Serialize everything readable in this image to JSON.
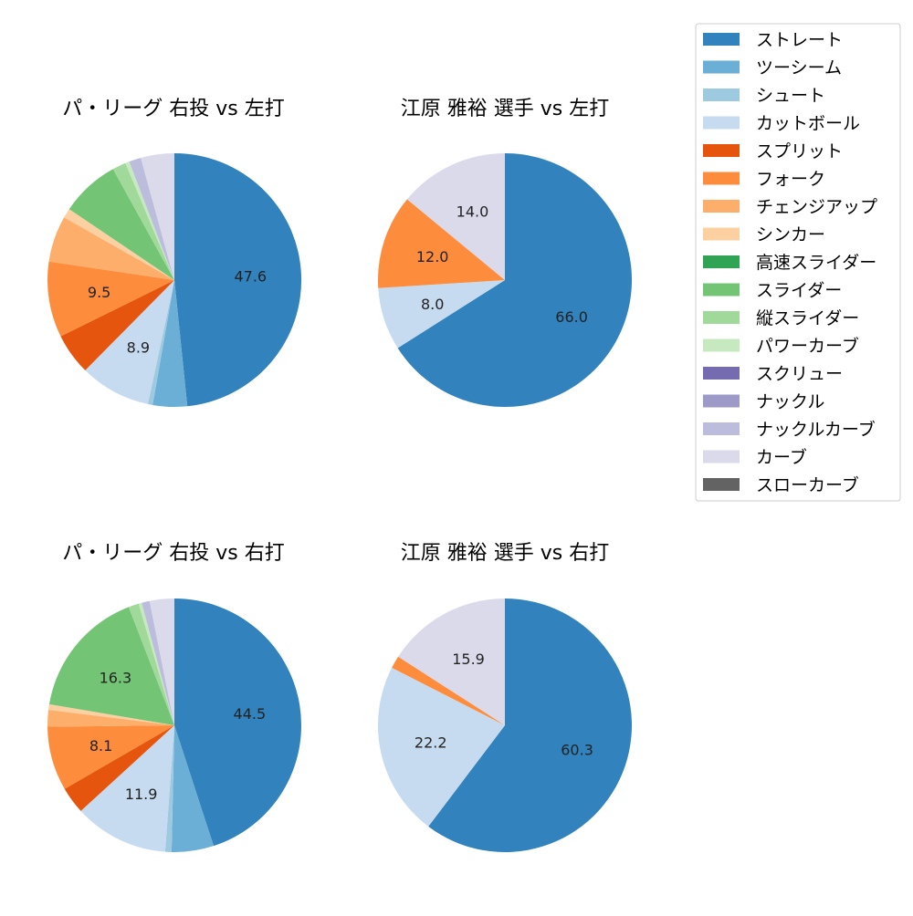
{
  "legend": {
    "placement": "right",
    "items": [
      {
        "label": "ストレート",
        "color": "#3182bd"
      },
      {
        "label": "ツーシーム",
        "color": "#6baed6"
      },
      {
        "label": "シュート",
        "color": "#9ecae1"
      },
      {
        "label": "カットボール",
        "color": "#c6dbef"
      },
      {
        "label": "スプリット",
        "color": "#e6550d"
      },
      {
        "label": "フォーク",
        "color": "#fd8d3c"
      },
      {
        "label": "チェンジアップ",
        "color": "#fdae6b"
      },
      {
        "label": "シンカー",
        "color": "#fdd0a2"
      },
      {
        "label": "高速スライダー",
        "color": "#31a354"
      },
      {
        "label": "スライダー",
        "color": "#74c476"
      },
      {
        "label": "縦スライダー",
        "color": "#a1d99b"
      },
      {
        "label": "パワーカーブ",
        "color": "#c7e9c0"
      },
      {
        "label": "スクリュー",
        "color": "#756bb1"
      },
      {
        "label": "ナックル",
        "color": "#9e9ac8"
      },
      {
        "label": "ナックルカーブ",
        "color": "#bcbddc"
      },
      {
        "label": "カーブ",
        "color": "#dadaeb"
      },
      {
        "label": "スローカーブ",
        "color": "#636363"
      }
    ]
  },
  "chart_data": [
    {
      "type": "pie",
      "title": "パ・リーグ 右投 vs 左打",
      "slices": [
        {
          "name": "ストレート",
          "value": 47.6,
          "label": "47.6"
        },
        {
          "name": "ツーシーム",
          "value": 4.3
        },
        {
          "name": "シュート",
          "value": 0.6
        },
        {
          "name": "カットボール",
          "value": 8.9,
          "label": "8.9"
        },
        {
          "name": "スプリット",
          "value": 5.2
        },
        {
          "name": "フォーク",
          "value": 9.5,
          "label": "9.5"
        },
        {
          "name": "チェンジアップ",
          "value": 5.8
        },
        {
          "name": "シンカー",
          "value": 1.2
        },
        {
          "name": "スライダー",
          "value": 7.4
        },
        {
          "name": "縦スライダー",
          "value": 1.7
        },
        {
          "name": "パワーカーブ",
          "value": 0.5
        },
        {
          "name": "ナックルカーブ",
          "value": 1.5
        },
        {
          "name": "カーブ",
          "value": 4.2
        }
      ]
    },
    {
      "type": "pie",
      "title": "江原 雅裕 選手 vs 左打",
      "slices": [
        {
          "name": "ストレート",
          "value": 66.0,
          "label": "66.0"
        },
        {
          "name": "カットボール",
          "value": 8.0,
          "label": "8.0"
        },
        {
          "name": "フォーク",
          "value": 12.0,
          "label": "12.0"
        },
        {
          "name": "カーブ",
          "value": 14.0,
          "label": "14.0"
        }
      ]
    },
    {
      "type": "pie",
      "title": "パ・リーグ 右投 vs 右打",
      "slices": [
        {
          "name": "ストレート",
          "value": 44.5,
          "label": "44.5"
        },
        {
          "name": "ツーシーム",
          "value": 5.3
        },
        {
          "name": "シュート",
          "value": 0.8
        },
        {
          "name": "カットボール",
          "value": 11.9,
          "label": "11.9"
        },
        {
          "name": "スプリット",
          "value": 3.4
        },
        {
          "name": "フォーク",
          "value": 8.1,
          "label": "8.1"
        },
        {
          "name": "チェンジアップ",
          "value": 2.1
        },
        {
          "name": "シンカー",
          "value": 0.7
        },
        {
          "name": "スライダー",
          "value": 16.3,
          "label": "16.3"
        },
        {
          "name": "縦スライダー",
          "value": 1.3
        },
        {
          "name": "パワーカーブ",
          "value": 0.4
        },
        {
          "name": "ナックルカーブ",
          "value": 1.0
        },
        {
          "name": "カーブ",
          "value": 3.1
        }
      ]
    },
    {
      "type": "pie",
      "title": "江原 雅裕 選手 vs 右打",
      "slices": [
        {
          "name": "ストレート",
          "value": 60.3,
          "label": "60.3"
        },
        {
          "name": "カットボール",
          "value": 22.2,
          "label": "22.2"
        },
        {
          "name": "フォーク",
          "value": 1.6
        },
        {
          "name": "カーブ",
          "value": 15.9,
          "label": "15.9"
        }
      ]
    }
  ]
}
